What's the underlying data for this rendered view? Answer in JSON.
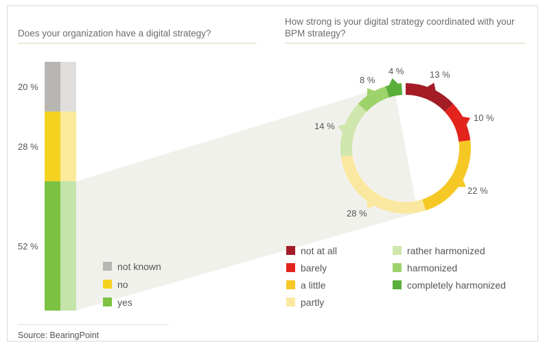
{
  "chart_data": [
    {
      "type": "bar",
      "subtype": "stacked-100",
      "title": "Does your organization have a digital strategy?",
      "series": [
        {
          "name": "yes",
          "value": 52,
          "label": "52 %",
          "color": "#7cc242"
        },
        {
          "name": "no",
          "value": 28,
          "label": "28 %",
          "color": "#f5d21f"
        },
        {
          "name": "not known",
          "value": 20,
          "label": "20 %",
          "color": "#b8b6b3"
        }
      ],
      "legend": [
        {
          "name": "not known",
          "color": "#b8b6b3"
        },
        {
          "name": "no",
          "color": "#f5d21f"
        },
        {
          "name": "yes",
          "color": "#7cc242"
        }
      ]
    },
    {
      "type": "pie",
      "subtype": "donut",
      "title": "How strong is your digital strategy coordinated with your BPM strategy?",
      "slices": [
        {
          "name": "not at all",
          "value": 13,
          "label": "13 %",
          "color": "#a31c26"
        },
        {
          "name": "barely",
          "value": 10,
          "label": "10 %",
          "color": "#e2241d"
        },
        {
          "name": "a little",
          "value": 22,
          "label": "22 %",
          "color": "#f5c825"
        },
        {
          "name": "partly",
          "value": 28,
          "label": "28 %",
          "color": "#fbe8a0"
        },
        {
          "name": "rather harmonized",
          "value": 14,
          "label": "14 %",
          "color": "#cfe6ad"
        },
        {
          "name": "harmonized",
          "value": 8,
          "label": "8 %",
          "color": "#9ed36c"
        },
        {
          "name": "completely harmonized",
          "value": 4,
          "label": "4 %",
          "color": "#5aaf3a"
        }
      ],
      "legend": [
        {
          "name": "not at all",
          "color": "#a31c26"
        },
        {
          "name": "barely",
          "color": "#e2241d"
        },
        {
          "name": "a little",
          "color": "#f5c825"
        },
        {
          "name": "partly",
          "color": "#fbe8a0"
        },
        {
          "name": "rather harmonized",
          "color": "#cfe6ad"
        },
        {
          "name": "harmonized",
          "color": "#9ed36c"
        },
        {
          "name": "completely harmonized",
          "color": "#5aaf3a"
        }
      ]
    }
  ],
  "source": "Source: BearingPoint"
}
